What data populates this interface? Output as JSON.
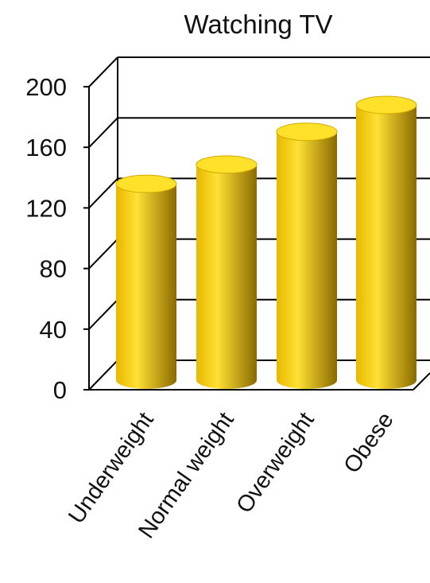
{
  "chart_data": {
    "type": "bar",
    "title": "Watching TV",
    "xlabel": "",
    "ylabel": "",
    "categories": [
      "Underweight",
      "Normal weight",
      "Overweight",
      "Obese"
    ],
    "values": [
      132,
      145,
      167,
      185
    ],
    "ylim": [
      0,
      200
    ],
    "yticks": [
      "0",
      "40",
      "80",
      "120",
      "160",
      "200"
    ],
    "grid": true,
    "legend": "none",
    "bar_style": "3d-cylinder",
    "colors": {
      "bar_light": "#ffe033",
      "bar_mid": "#e8b800",
      "bar_dark": "#8a6a00",
      "bar_top": "#ffe12a",
      "grid": "#000000"
    }
  }
}
